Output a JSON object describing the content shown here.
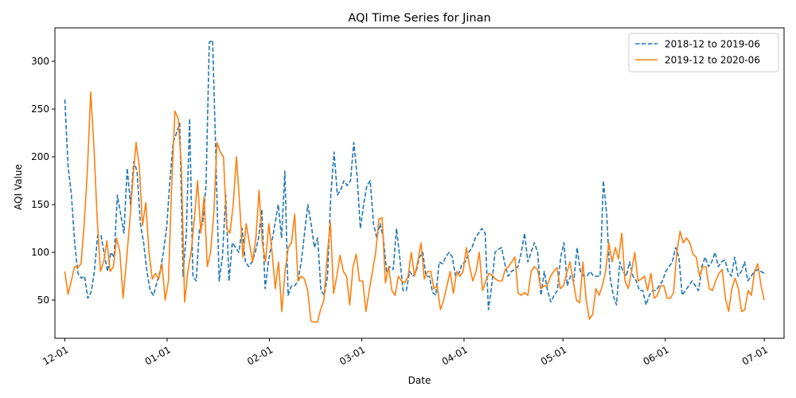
{
  "chart_data": {
    "type": "line",
    "title": "AQI Time Series for Jinan",
    "xlabel": "Date",
    "ylabel": "AQI Value",
    "x_domain": [
      "12-01",
      "07-01"
    ],
    "xlim": [
      "11-28",
      "07-07"
    ],
    "ylim": [
      10,
      335
    ],
    "x_ticks": [
      "12-01",
      "01-01",
      "02-01",
      "03-01",
      "04-01",
      "05-01",
      "06-01",
      "07-01"
    ],
    "y_ticks": [
      50,
      100,
      150,
      200,
      250,
      300
    ],
    "grid": false,
    "legend_position": "top-right",
    "series": [
      {
        "name": "2018-12 to 2019-06",
        "color": "#1f77b4",
        "style": "dashed",
        "values": [
          260,
          190,
          160,
          110,
          78,
          73,
          75,
          52,
          58,
          80,
          118,
          118,
          98,
          80,
          100,
          95,
          160,
          140,
          120,
          188,
          150,
          195,
          185,
          130,
          110,
          80,
          60,
          55,
          68,
          80,
          100,
          125,
          175,
          215,
          225,
          235,
          75,
          120,
          240,
          75,
          70,
          125,
          130,
          170,
          320,
          322,
          200,
          70,
          95,
          160,
          70,
          110,
          105,
          100,
          125,
          90,
          85,
          90,
          100,
          115,
          145,
          62,
          90,
          110,
          130,
          150,
          115,
          185,
          55,
          65,
          65,
          70,
          90,
          120,
          150,
          130,
          105,
          115,
          60,
          55,
          75,
          160,
          205,
          160,
          165,
          175,
          170,
          175,
          215,
          180,
          125,
          150,
          170,
          175,
          130,
          115,
          130,
          115,
          80,
          85,
          82,
          125,
          95,
          60,
          60,
          80,
          75,
          80,
          95,
          100,
          75,
          75,
          58,
          55,
          90,
          88,
          95,
          100,
          95,
          75,
          78,
          88,
          90,
          100,
          105,
          115,
          120,
          125,
          120,
          40,
          65,
          100,
          103,
          105,
          88,
          75,
          80,
          82,
          85,
          100,
          120,
          90,
          100,
          110,
          100,
          55,
          80,
          60,
          48,
          55,
          60,
          95,
          110,
          65,
          75,
          70,
          105,
          80,
          75,
          75,
          80,
          75,
          75,
          75,
          175,
          140,
          75,
          55,
          45,
          90,
          80,
          75,
          90,
          75,
          70,
          60,
          60,
          45,
          55,
          60,
          60,
          65,
          70,
          80,
          85,
          90,
          105,
          95,
          55,
          60,
          65,
          70,
          65,
          60,
          85,
          95,
          85,
          90,
          100,
          85,
          90,
          92,
          80,
          75,
          95,
          75,
          80,
          90,
          70,
          75,
          80,
          82,
          80,
          78
        ]
      },
      {
        "name": "2019-12 to 2020-06",
        "color": "#ff7f0e",
        "style": "solid",
        "values": [
          80,
          56,
          70,
          85,
          84,
          88,
          130,
          188,
          268,
          210,
          135,
          80,
          90,
          112,
          80,
          85,
          115,
          100,
          52,
          90,
          130,
          175,
          215,
          190,
          128,
          152,
          100,
          72,
          78,
          72,
          88,
          50,
          70,
          170,
          248,
          240,
          190,
          48,
          80,
          100,
          135,
          175,
          120,
          158,
          85,
          100,
          140,
          215,
          205,
          200,
          125,
          120,
          150,
          200,
          150,
          95,
          130,
          110,
          90,
          115,
          165,
          110,
          90,
          130,
          100,
          62,
          90,
          38,
          80,
          105,
          110,
          140,
          70,
          75,
          72,
          60,
          28,
          27,
          27,
          40,
          50,
          95,
          132,
          57,
          75,
          97,
          80,
          75,
          45,
          85,
          98,
          70,
          70,
          38,
          60,
          80,
          100,
          135,
          136,
          68,
          85,
          60,
          55,
          75,
          70,
          68,
          75,
          100,
          75,
          90,
          110,
          72,
          80,
          80,
          62,
          65,
          40,
          50,
          65,
          80,
          57,
          80,
          75,
          80,
          105,
          85,
          70,
          80,
          100,
          60,
          70,
          78,
          76,
          72,
          70,
          70,
          82,
          85,
          90,
          95,
          57,
          55,
          58,
          55,
          80,
          85,
          82,
          62,
          65,
          65,
          75,
          80,
          84,
          62,
          65,
          78,
          90,
          70,
          50,
          47,
          90,
          50,
          30,
          35,
          62,
          55,
          65,
          80,
          110,
          90,
          105,
          93,
          120,
          70,
          62,
          80,
          100,
          70,
          72,
          75,
          60,
          78,
          52,
          55,
          65,
          65,
          52,
          52,
          58,
          100,
          122,
          110,
          115,
          110,
          98,
          95,
          75,
          85,
          85,
          62,
          60,
          70,
          78,
          82,
          52,
          38,
          62,
          73,
          62,
          38,
          40,
          60,
          55,
          80,
          88,
          65,
          50
        ]
      }
    ]
  }
}
